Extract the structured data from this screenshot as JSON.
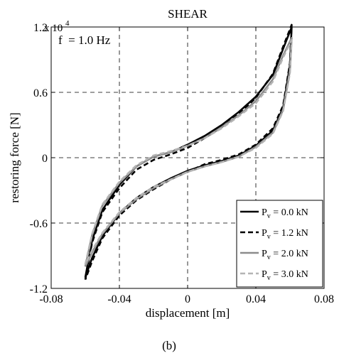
{
  "chart_data": {
    "type": "line",
    "title": "SHEAR",
    "annotation": "f  = 1.0 Hz",
    "xlabel": "displacement [m]",
    "ylabel": "restoring force [N]",
    "y_multiplier_label": "x 10",
    "y_multiplier_exponent": "4",
    "caption": "(b)",
    "xlim": [
      -0.08,
      0.08
    ],
    "ylim": [
      -12000,
      12000
    ],
    "x_ticks": [
      -0.08,
      -0.04,
      0,
      0.04,
      0.08
    ],
    "x_tick_labels": [
      "-0.08",
      "-0.04",
      "0",
      "0.04",
      "0.08"
    ],
    "y_ticks": [
      -12000,
      -6000,
      0,
      6000,
      12000
    ],
    "y_tick_labels": [
      "-1.2",
      "-0.6",
      "0",
      "0.6",
      "1.2"
    ],
    "grid": "dashed",
    "legend_position": "bottom-right",
    "series": [
      {
        "name": "P",
        "name_sub": "v",
        "name_rest": " = 0.0 kN",
        "color": "#000000",
        "dash": "solid",
        "upper_branch": [
          [
            -0.06,
            -11000
          ],
          [
            -0.056,
            -7600
          ],
          [
            -0.05,
            -4800
          ],
          [
            -0.04,
            -2500
          ],
          [
            -0.03,
            -800
          ],
          [
            -0.02,
            100
          ],
          [
            -0.01,
            500
          ],
          [
            0,
            1200
          ],
          [
            0.01,
            2000
          ],
          [
            0.02,
            3000
          ],
          [
            0.03,
            4200
          ],
          [
            0.04,
            5600
          ],
          [
            0.05,
            7600
          ],
          [
            0.056,
            10000
          ],
          [
            0.061,
            12000
          ]
        ],
        "lower_branch": [
          [
            0.061,
            12000
          ],
          [
            0.06,
            8500
          ],
          [
            0.056,
            4600
          ],
          [
            0.05,
            2500
          ],
          [
            0.04,
            1100
          ],
          [
            0.03,
            200
          ],
          [
            0.02,
            -300
          ],
          [
            0.01,
            -700
          ],
          [
            0,
            -1200
          ],
          [
            -0.01,
            -1900
          ],
          [
            -0.02,
            -2700
          ],
          [
            -0.03,
            -3700
          ],
          [
            -0.04,
            -5100
          ],
          [
            -0.05,
            -7200
          ],
          [
            -0.056,
            -9200
          ],
          [
            -0.06,
            -11000
          ]
        ]
      },
      {
        "name": "P",
        "name_sub": "v",
        "name_rest": " = 1.2 kN",
        "color": "#000000",
        "dash": "dashed",
        "upper_branch": [
          [
            -0.06,
            -11200
          ],
          [
            -0.056,
            -7800
          ],
          [
            -0.05,
            -5000
          ],
          [
            -0.04,
            -2800
          ],
          [
            -0.03,
            -1100
          ],
          [
            -0.02,
            -200
          ],
          [
            -0.01,
            300
          ],
          [
            0,
            900
          ],
          [
            0.01,
            1800
          ],
          [
            0.02,
            2800
          ],
          [
            0.03,
            4000
          ],
          [
            0.04,
            5500
          ],
          [
            0.05,
            7700
          ],
          [
            0.056,
            10200
          ],
          [
            0.061,
            12200
          ]
        ],
        "lower_branch": [
          [
            0.061,
            12200
          ],
          [
            0.06,
            8700
          ],
          [
            0.056,
            4800
          ],
          [
            0.05,
            2700
          ],
          [
            0.04,
            1200
          ],
          [
            0.03,
            300
          ],
          [
            0.02,
            -200
          ],
          [
            0.01,
            -600
          ],
          [
            0,
            -1300
          ],
          [
            -0.01,
            -2000
          ],
          [
            -0.02,
            -2900
          ],
          [
            -0.03,
            -3900
          ],
          [
            -0.04,
            -5300
          ],
          [
            -0.05,
            -7400
          ],
          [
            -0.056,
            -9500
          ],
          [
            -0.06,
            -11200
          ]
        ]
      },
      {
        "name": "P",
        "name_sub": "v",
        "name_rest": " = 2.0 kN",
        "color": "#8c8c8c",
        "dash": "solid",
        "upper_branch": [
          [
            -0.06,
            -10000
          ],
          [
            -0.056,
            -7100
          ],
          [
            -0.05,
            -4400
          ],
          [
            -0.04,
            -2300
          ],
          [
            -0.03,
            -800
          ],
          [
            -0.02,
            100
          ],
          [
            -0.01,
            500
          ],
          [
            0,
            1100
          ],
          [
            0.01,
            1800
          ],
          [
            0.02,
            2800
          ],
          [
            0.03,
            3900
          ],
          [
            0.04,
            5200
          ],
          [
            0.05,
            7200
          ],
          [
            0.056,
            9400
          ],
          [
            0.061,
            11000
          ]
        ],
        "lower_branch": [
          [
            0.061,
            11000
          ],
          [
            0.06,
            8000
          ],
          [
            0.056,
            4400
          ],
          [
            0.05,
            2300
          ],
          [
            0.04,
            1000
          ],
          [
            0.03,
            100
          ],
          [
            0.02,
            -400
          ],
          [
            0.01,
            -800
          ],
          [
            0,
            -1300
          ],
          [
            -0.01,
            -2000
          ],
          [
            -0.02,
            -2800
          ],
          [
            -0.03,
            -3800
          ],
          [
            -0.04,
            -5100
          ],
          [
            -0.05,
            -7000
          ],
          [
            -0.056,
            -8700
          ],
          [
            -0.06,
            -10000
          ]
        ]
      },
      {
        "name": "P",
        "name_sub": "v",
        "name_rest": " = 3.0 kN",
        "color": "#b4b4b4",
        "dash": "dashed",
        "upper_branch": [
          [
            -0.06,
            -9800
          ],
          [
            -0.056,
            -7000
          ],
          [
            -0.05,
            -4300
          ],
          [
            -0.04,
            -2200
          ],
          [
            -0.03,
            -700
          ],
          [
            -0.02,
            200
          ],
          [
            -0.01,
            600
          ],
          [
            0,
            1100
          ],
          [
            0.01,
            1800
          ],
          [
            0.02,
            2700
          ],
          [
            0.03,
            3800
          ],
          [
            0.04,
            5000
          ],
          [
            0.05,
            7000
          ],
          [
            0.056,
            9200
          ],
          [
            0.061,
            10800
          ]
        ],
        "lower_branch": [
          [
            0.061,
            10800
          ],
          [
            0.06,
            7800
          ],
          [
            0.056,
            4300
          ],
          [
            0.05,
            2200
          ],
          [
            0.04,
            900
          ],
          [
            0.03,
            100
          ],
          [
            0.02,
            -400
          ],
          [
            0.01,
            -800
          ],
          [
            0,
            -1300
          ],
          [
            -0.01,
            -2000
          ],
          [
            -0.02,
            -2700
          ],
          [
            -0.03,
            -3700
          ],
          [
            -0.04,
            -5000
          ],
          [
            -0.05,
            -6900
          ],
          [
            -0.056,
            -8500
          ],
          [
            -0.06,
            -9800
          ]
        ]
      }
    ]
  }
}
